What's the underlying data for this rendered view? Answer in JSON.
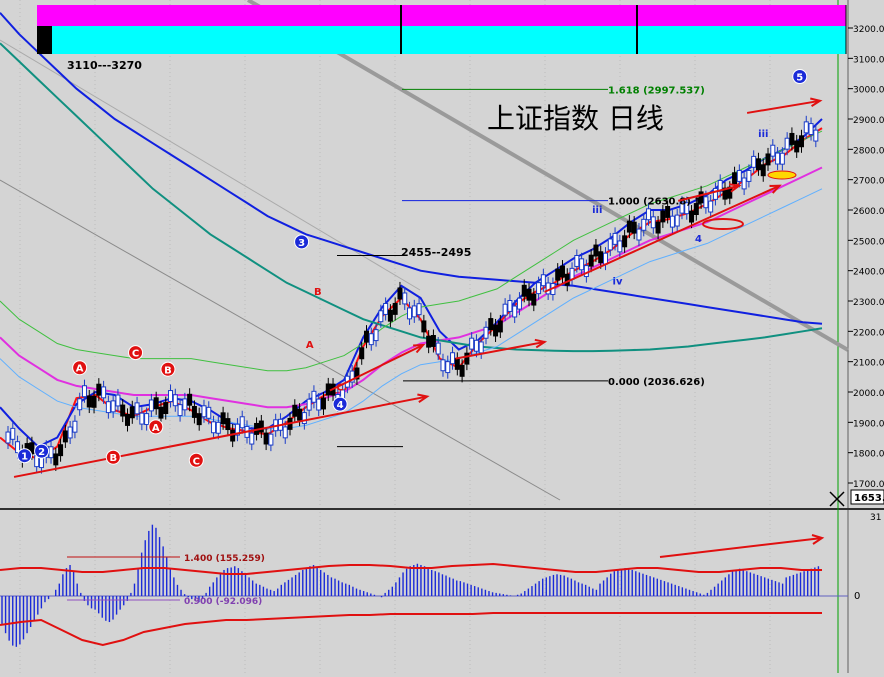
{
  "title": "上证指数  日线",
  "header_range_label": "3110---3270",
  "price_axis": {
    "ticks": [
      "3200.0",
      "3100.0",
      "3000.0",
      "2900.0",
      "2800.0",
      "2700.0",
      "2600.0",
      "2500.0",
      "2400.0",
      "2300.0",
      "2200.0",
      "2100.0",
      "2000.0",
      "1900.0",
      "1800.0",
      "1700.0"
    ],
    "current_badge": "1653.",
    "marker": "3"
  },
  "osc_axis": {
    "zero_label": "0",
    "top_tag": "31"
  },
  "colors": {
    "background": "#d4d4d4",
    "up_candle": "#1a3cc8",
    "down_candle": "#000000",
    "magenta_band": "#ff00ff",
    "cyan_band": "#00ffff",
    "ma_red": "#ff1010",
    "ma_blue": "#1020e0",
    "ma_magenta": "#e030e0",
    "ma_teal": "#109080",
    "grid_line": "#8a8a8a",
    "fib_green": "#008000"
  },
  "chart_data": [
    {
      "type": "candlestick",
      "title": "上证指数  日线",
      "ylim": [
        1650,
        3250
      ],
      "grid": true,
      "fib_levels": [
        {
          "label": "1.618 (2997.537)",
          "value": 2997.537
        },
        {
          "label": "1.000 (2630.8) 1",
          "value": 2630.8
        },
        {
          "label": "0.000 (2036.626)",
          "value": 2036.626
        }
      ],
      "range_annotation": "2455--2495",
      "wave_labels": [
        {
          "text": "1",
          "x": 0.36,
          "y": 1790,
          "kind": "circle-blue"
        },
        {
          "text": "2",
          "x": 0.78,
          "y": 1805,
          "kind": "circle-blue"
        },
        {
          "text": "3",
          "x": 7.2,
          "y": 2495,
          "kind": "circle-blue"
        },
        {
          "text": "4",
          "x": 8.15,
          "y": 1960,
          "kind": "circle-blue"
        },
        {
          "text": "5",
          "x": 19.5,
          "y": 3040,
          "kind": "circle-blue"
        },
        {
          "text": "A",
          "x": 1.72,
          "y": 2080,
          "kind": "circle-red"
        },
        {
          "text": "B",
          "x": 2.55,
          "y": 1785,
          "kind": "circle-red"
        },
        {
          "text": "C",
          "x": 3.1,
          "y": 2130,
          "kind": "circle-red"
        },
        {
          "text": "B",
          "x": 3.9,
          "y": 2075,
          "kind": "circle-red"
        },
        {
          "text": "A",
          "x": 3.6,
          "y": 1885,
          "kind": "circle-red"
        },
        {
          "text": "C",
          "x": 4.6,
          "y": 1775,
          "kind": "circle-red"
        },
        {
          "text": "B",
          "x": 7.6,
          "y": 2320,
          "kind": "text-red"
        },
        {
          "text": "A",
          "x": 7.4,
          "y": 2145,
          "kind": "text-red"
        },
        {
          "text": "C",
          "x": 8.15,
          "y": 2005,
          "kind": "text-red"
        },
        {
          "text": "iii",
          "x": 14.5,
          "y": 2590,
          "kind": "text-blue"
        },
        {
          "text": "iv",
          "x": 15.0,
          "y": 2355,
          "kind": "text-blue"
        },
        {
          "text": "4",
          "x": 17.0,
          "y": 2495,
          "kind": "text-blue"
        },
        {
          "text": "iii",
          "x": 18.6,
          "y": 2840,
          "kind": "text-blue"
        }
      ],
      "series_ma": [
        {
          "name": "MA5",
          "color": "#ff1010",
          "values": [
            1850,
            1800,
            1780,
            1820,
            1980,
            1990,
            1940,
            1920,
            1950,
            1970,
            1940,
            1900,
            1880,
            1870,
            1860,
            1900,
            1950,
            1990,
            2000,
            2150,
            2250,
            2310,
            2240,
            2110,
            2080,
            2160,
            2220,
            2290,
            2330,
            2360,
            2400,
            2430,
            2470,
            2520,
            2560,
            2570,
            2590,
            2620,
            2660,
            2700,
            2750,
            2780,
            2830,
            2870
          ]
        },
        {
          "name": "MA10",
          "color": "#1020e0",
          "values": [
            1950,
            1880,
            1820,
            1850,
            1960,
            2000,
            1990,
            1950,
            1960,
            1980,
            1970,
            1940,
            1900,
            1880,
            1880,
            1920,
            1970,
            2000,
            2040,
            2180,
            2280,
            2350,
            2310,
            2200,
            2140,
            2170,
            2230,
            2300,
            2360,
            2400,
            2440,
            2470,
            2510,
            2560,
            2600,
            2600,
            2620,
            2650,
            2700,
            2730,
            2770,
            2800,
            2840,
            2900
          ]
        },
        {
          "name": "MA20",
          "color": "#e030e0",
          "values": [
            2180,
            2120,
            2080,
            2040,
            2020,
            2010,
            2000,
            1990,
            1990,
            1990,
            1990,
            1980,
            1970,
            1960,
            1950,
            1950,
            1960,
            1980,
            2000,
            2040,
            2090,
            2130,
            2160,
            2170,
            2180,
            2200,
            2220,
            2260,
            2300,
            2340,
            2380,
            2410,
            2440,
            2470,
            2500,
            2520,
            2540,
            2560,
            2590,
            2620,
            2650,
            2680,
            2710,
            2740
          ]
        },
        {
          "name": "MA60",
          "color": "#1020e0",
          "values": [
            3250,
            3180,
            3120,
            3060,
            3000,
            2950,
            2900,
            2860,
            2820,
            2780,
            2740,
            2700,
            2660,
            2620,
            2580,
            2550,
            2520,
            2500,
            2480,
            2460,
            2440,
            2420,
            2400,
            2390,
            2380,
            2375,
            2370,
            2365,
            2360,
            2355,
            2350,
            2340,
            2330,
            2320,
            2310,
            2300,
            2290,
            2280,
            2270,
            2260,
            2250,
            2240,
            2230,
            2225
          ]
        },
        {
          "name": "MA120",
          "color": "#109080",
          "values": [
            3150,
            3090,
            3030,
            2970,
            2910,
            2850,
            2790,
            2730,
            2670,
            2620,
            2570,
            2520,
            2480,
            2440,
            2400,
            2360,
            2330,
            2300,
            2270,
            2240,
            2220,
            2200,
            2180,
            2170,
            2160,
            2150,
            2145,
            2140,
            2138,
            2136,
            2135,
            2135,
            2136,
            2138,
            2140,
            2145,
            2150,
            2158,
            2165,
            2172,
            2180,
            2190,
            2200,
            2210
          ]
        }
      ],
      "trend_arrows": [
        {
          "from": [
            0.1,
            1720
          ],
          "to": [
            10.3,
            1985
          ]
        },
        {
          "from": [
            7.9,
            2005
          ],
          "to": [
            10.2,
            2155
          ]
        },
        {
          "from": [
            11.0,
            2110
          ],
          "to": [
            13.2,
            2165
          ]
        },
        {
          "from": [
            13.2,
            2330
          ],
          "to": [
            19.0,
            2680
          ]
        },
        {
          "from": [
            16.5,
            2630
          ],
          "to": [
            18.0,
            2680
          ]
        },
        {
          "from": [
            18.2,
            2920
          ],
          "to": [
            20.0,
            2960
          ]
        }
      ]
    },
    {
      "type": "bar",
      "title": "",
      "levels": [
        {
          "label": "1.400 (155.259)",
          "value": 155.259
        },
        {
          "label": "0.900 (-92.096)",
          "value": -92.096
        }
      ],
      "zero": 0,
      "values": [
        -45,
        -60,
        -72,
        -80,
        -82,
        -78,
        -70,
        -60,
        -50,
        -40,
        -30,
        -20,
        -10,
        -5,
        0,
        10,
        20,
        35,
        45,
        50,
        40,
        20,
        5,
        -8,
        -15,
        -20,
        -22,
        -28,
        -35,
        -40,
        -42,
        -38,
        -30,
        -22,
        -15,
        -8,
        5,
        20,
        45,
        70,
        90,
        105,
        115,
        110,
        95,
        80,
        62,
        45,
        30,
        18,
        10,
        3,
        -2,
        -5,
        -8,
        -10,
        -5,
        5,
        15,
        22,
        30,
        38,
        42,
        45,
        46,
        48,
        45,
        40,
        35,
        30,
        25,
        20,
        18,
        15,
        12,
        10,
        8,
        12,
        18,
        22,
        26,
        30,
        34,
        38,
        42,
        46,
        48,
        50,
        46,
        42,
        38,
        34,
        30,
        28,
        25,
        22,
        20,
        18,
        15,
        12,
        10,
        8,
        6,
        4,
        2,
        0,
        -2,
        5,
        10,
        15,
        22,
        30,
        38,
        44,
        48,
        50,
        52,
        50,
        48,
        45,
        42,
        40,
        38,
        35,
        33,
        30,
        28,
        25,
        24,
        22,
        20,
        18,
        16,
        14,
        12,
        10,
        8,
        6,
        5,
        4,
        3,
        2,
        1,
        0,
        2,
        4,
        8,
        12,
        16,
        20,
        24,
        28,
        30,
        32,
        34,
        35,
        34,
        33,
        30,
        28,
        25,
        22,
        20,
        18,
        15,
        12,
        10,
        20,
        25,
        30,
        36,
        40,
        42,
        44,
        45,
        44,
        42,
        40,
        38,
        36,
        34,
        32,
        30,
        28,
        26,
        24,
        22,
        20,
        18,
        16,
        14,
        12,
        10,
        8,
        6,
        4,
        2,
        5,
        10,
        15,
        20,
        25,
        30,
        35,
        40,
        42,
        44,
        42,
        40,
        38,
        36,
        34,
        32,
        30,
        28,
        26,
        24,
        22,
        20,
        30,
        32,
        34,
        36,
        38,
        40,
        42,
        44,
        46,
        48
      ]
    }
  ]
}
